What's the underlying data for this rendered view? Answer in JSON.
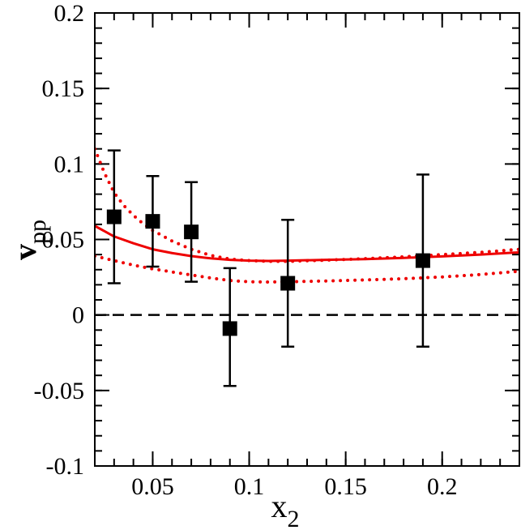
{
  "chart_data": {
    "type": "scatter",
    "xlabel": "x",
    "xlabel_sub": "2",
    "ylabel": "v",
    "ylabel_sub": "pp",
    "xlim": [
      0.02,
      0.24
    ],
    "ylim": [
      -0.1,
      0.2
    ],
    "x_ticks": [
      {
        "value": 0.05,
        "label": "0.05"
      },
      {
        "value": 0.1,
        "label": "0.1"
      },
      {
        "value": 0.15,
        "label": "0.15"
      },
      {
        "value": 0.2,
        "label": "0.2"
      }
    ],
    "y_ticks": [
      {
        "value": -0.1,
        "label": "-0.1"
      },
      {
        "value": -0.05,
        "label": "-0.05"
      },
      {
        "value": 0,
        "label": "0"
      },
      {
        "value": 0.05,
        "label": "0.05"
      },
      {
        "value": 0.1,
        "label": "0.1"
      },
      {
        "value": 0.15,
        "label": "0.15"
      },
      {
        "value": 0.2,
        "label": "0.2"
      }
    ],
    "x_minor_step": 0.01,
    "y_minor_step": 0.01,
    "points": [
      {
        "x": 0.03,
        "y": 0.065,
        "err_low": 0.021,
        "err_high": 0.109
      },
      {
        "x": 0.05,
        "y": 0.062,
        "err_low": 0.032,
        "err_high": 0.092
      },
      {
        "x": 0.07,
        "y": 0.055,
        "err_low": 0.022,
        "err_high": 0.088
      },
      {
        "x": 0.09,
        "y": -0.009,
        "err_low": -0.047,
        "err_high": 0.031
      },
      {
        "x": 0.12,
        "y": 0.021,
        "err_low": -0.021,
        "err_high": 0.063
      },
      {
        "x": 0.19,
        "y": 0.036,
        "err_low": -0.021,
        "err_high": 0.093
      }
    ],
    "curves": [
      {
        "style": "solid",
        "color": "#ee0000",
        "x": [
          0.02,
          0.03,
          0.04,
          0.05,
          0.06,
          0.07,
          0.08,
          0.09,
          0.1,
          0.11,
          0.12,
          0.14,
          0.16,
          0.18,
          0.2,
          0.22,
          0.24
        ],
        "y": [
          0.059,
          0.052,
          0.0475,
          0.0435,
          0.041,
          0.039,
          0.0375,
          0.0365,
          0.036,
          0.0358,
          0.036,
          0.0365,
          0.037,
          0.0378,
          0.0388,
          0.04,
          0.0415
        ]
      },
      {
        "style": "dotted",
        "color": "#ee0000",
        "x": [
          0.02,
          0.025,
          0.03,
          0.035,
          0.04,
          0.045,
          0.05,
          0.06,
          0.07,
          0.08,
          0.09,
          0.1,
          0.11,
          0.12,
          0.14,
          0.16,
          0.18,
          0.2,
          0.22,
          0.24
        ],
        "y": [
          0.11,
          0.094,
          0.081,
          0.0725,
          0.066,
          0.0605,
          0.056,
          0.049,
          0.0435,
          0.0395,
          0.037,
          0.036,
          0.0355,
          0.0355,
          0.0363,
          0.0373,
          0.0385,
          0.04,
          0.0415,
          0.0435
        ]
      },
      {
        "style": "dotted",
        "color": "#ee0000",
        "x": [
          0.02,
          0.03,
          0.04,
          0.05,
          0.06,
          0.07,
          0.08,
          0.09,
          0.1,
          0.11,
          0.12,
          0.14,
          0.16,
          0.18,
          0.2,
          0.22,
          0.24
        ],
        "y": [
          0.039,
          0.036,
          0.033,
          0.0305,
          0.0285,
          0.0265,
          0.0245,
          0.0228,
          0.022,
          0.0218,
          0.022,
          0.0225,
          0.0232,
          0.024,
          0.0252,
          0.0268,
          0.029
        ]
      }
    ],
    "reference_line": {
      "y": 0,
      "style": "dashed",
      "color": "#000000"
    },
    "marker": "square",
    "marker_color": "#000000"
  }
}
